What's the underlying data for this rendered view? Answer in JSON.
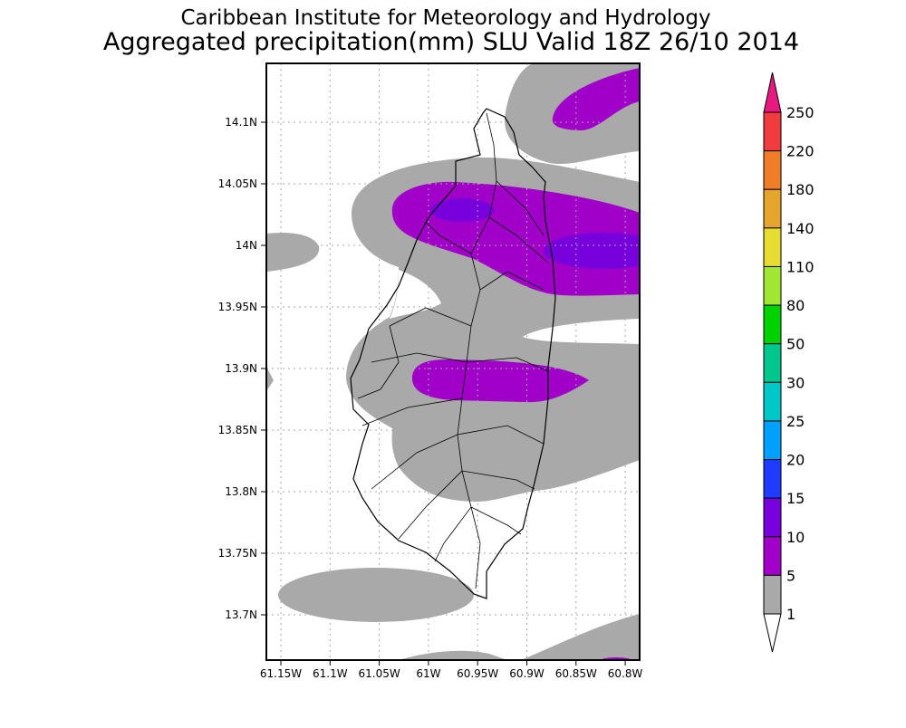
{
  "title": {
    "line1": "Caribbean Institute for Meteorology and Hydrology",
    "line2": "Aggregated precipitation(mm) SLU Valid 18Z 26/10 2014"
  },
  "map": {
    "lon_ticks": [
      "61.15W",
      "61.1W",
      "61.05W",
      "61W",
      "60.95W",
      "60.9W",
      "60.85W",
      "60.8W"
    ],
    "lat_ticks": [
      "14.1N",
      "14.05N",
      "14N",
      "13.95N",
      "13.9N",
      "13.85N",
      "13.8N",
      "13.75N",
      "13.7N"
    ],
    "field_colors": {
      "gray": "#a9a9a9",
      "purple": "#a000c8",
      "violet": "#7800dc"
    }
  },
  "colorbar": {
    "labels": [
      "250",
      "220",
      "180",
      "140",
      "110",
      "80",
      "50",
      "30",
      "25",
      "20",
      "15",
      "10",
      "5",
      "1"
    ],
    "top_arrow_color": "#e6197f",
    "bottom_arrow_color": "#ffffff",
    "colors": [
      "#f03c3c",
      "#f07d28",
      "#e6a52d",
      "#e6dc32",
      "#a0e632",
      "#00d200",
      "#00c88c",
      "#00c8c8",
      "#00a0ff",
      "#1e3cff",
      "#7800dc",
      "#a000c8",
      "#a9a9a9"
    ]
  }
}
